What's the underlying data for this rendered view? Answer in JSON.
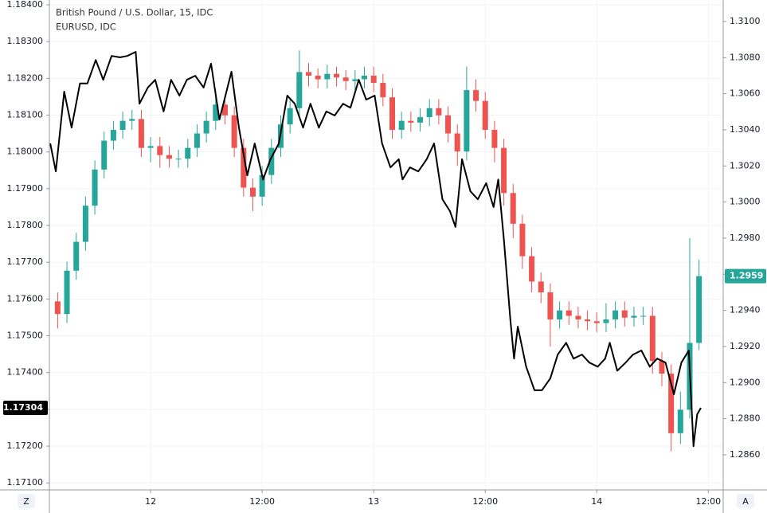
{
  "chart_data": {
    "type": "candlestick",
    "title": "British Pound / U.S. Dollar, 15, IDC",
    "grid": true,
    "xlim": [
      13.11,
      85.6
    ],
    "xticks": [
      {
        "value": 24,
        "label": "12"
      },
      {
        "value": 36,
        "label": "12:00"
      },
      {
        "value": 48,
        "label": "13"
      },
      {
        "value": 60,
        "label": "12:00"
      },
      {
        "value": 72,
        "label": "14"
      },
      {
        "value": 84,
        "label": "12:00"
      }
    ],
    "ylim": [
      1.17081,
      1.18413
    ],
    "yticks": [
      {
        "value": 1.171,
        "label": "1.17100"
      },
      {
        "value": 1.172,
        "label": "1.17200"
      },
      {
        "value": 1.173,
        "label": "1.17300"
      },
      {
        "value": 1.174,
        "label": "1.17400"
      },
      {
        "value": 1.175,
        "label": "1.17500"
      },
      {
        "value": 1.176,
        "label": "1.17600"
      },
      {
        "value": 1.177,
        "label": "1.17700"
      },
      {
        "value": 1.178,
        "label": "1.17800"
      },
      {
        "value": 1.179,
        "label": "1.17900"
      },
      {
        "value": 1.18,
        "label": "1.18000"
      },
      {
        "value": 1.181,
        "label": "1.18100"
      },
      {
        "value": 1.182,
        "label": "1.18200"
      },
      {
        "value": 1.183,
        "label": "1.18300"
      },
      {
        "value": 1.184,
        "label": "1.18400"
      }
    ],
    "y2lim": [
      1.28406,
      1.31119
    ],
    "y2ticks": [
      {
        "value": 1.286,
        "label": "1.2860"
      },
      {
        "value": 1.288,
        "label": "1.2880"
      },
      {
        "value": 1.29,
        "label": "1.2900"
      },
      {
        "value": 1.292,
        "label": "1.2920"
      },
      {
        "value": 1.294,
        "label": "1.2940"
      },
      {
        "value": 1.296,
        "label": "1.2960"
      },
      {
        "value": 1.298,
        "label": "1.2980"
      },
      {
        "value": 1.3,
        "label": "1.3000"
      },
      {
        "value": 1.302,
        "label": "1.3020"
      },
      {
        "value": 1.304,
        "label": "1.3040"
      },
      {
        "value": 1.306,
        "label": "1.3060"
      },
      {
        "value": 1.308,
        "label": "1.3080"
      },
      {
        "value": 1.31,
        "label": "1.3100"
      }
    ],
    "corner_buttons": [
      "Z",
      "A"
    ],
    "series": [
      {
        "type": "candlestick",
        "axis": "y2",
        "up_color": "#26a69a",
        "down_color": "#ef5350",
        "last_label": {
          "value": 1.2959,
          "label": "1.2959"
        },
        "x": [
          14,
          15,
          16,
          17,
          18,
          19,
          20,
          21,
          22,
          23,
          24,
          25,
          26,
          27,
          28,
          29,
          30,
          31,
          32,
          33,
          34,
          35,
          36,
          37,
          38,
          39,
          40,
          41,
          42,
          43,
          44,
          45,
          46,
          47,
          48,
          49,
          50,
          51,
          52,
          53,
          54,
          55,
          56,
          57,
          58,
          59,
          60,
          61,
          62,
          63,
          64,
          65,
          66,
          67,
          68,
          69,
          70,
          71,
          72,
          73,
          74,
          75,
          76,
          77,
          78,
          79,
          80,
          81,
          82,
          83
        ],
        "open": [
          1.2945,
          1.2938,
          1.2962,
          1.2978,
          1.2998,
          1.3018,
          1.3034,
          1.304,
          1.3045,
          1.3046,
          1.303,
          1.3031,
          1.3026,
          1.3024,
          1.3024,
          1.303,
          1.3038,
          1.3045,
          1.3054,
          1.3048,
          1.303,
          1.3008,
          1.3003,
          1.3015,
          1.303,
          1.3043,
          1.3052,
          1.3072,
          1.307,
          1.3068,
          1.3071,
          1.3069,
          1.3067,
          1.3068,
          1.307,
          1.3066,
          1.3058,
          1.304,
          1.3045,
          1.3044,
          1.3047,
          1.3052,
          1.3048,
          1.3038,
          1.3028,
          1.3062,
          1.3056,
          1.304,
          1.303,
          1.3005,
          1.2988,
          1.297,
          1.2956,
          1.295,
          1.2935,
          1.294,
          1.2937,
          1.2935,
          1.2934,
          1.2933,
          1.2935,
          1.294,
          1.2936,
          1.2937,
          1.2937,
          1.2912,
          1.2905,
          1.2872,
          1.2885,
          1.2922
        ],
        "high": [
          1.295,
          1.2967,
          1.2983,
          1.3003,
          1.3023,
          1.3039,
          1.3045,
          1.305,
          1.3051,
          1.3051,
          1.3036,
          1.3036,
          1.3031,
          1.3029,
          1.3035,
          1.3043,
          1.305,
          1.3062,
          1.3059,
          1.3053,
          1.3035,
          1.3013,
          1.302,
          1.3035,
          1.3048,
          1.3057,
          1.3084,
          1.3077,
          1.3074,
          1.3076,
          1.3075,
          1.3073,
          1.3073,
          1.3075,
          1.3075,
          1.3071,
          1.3063,
          1.305,
          1.305,
          1.3052,
          1.3057,
          1.3057,
          1.3053,
          1.3043,
          1.3075,
          1.3068,
          1.3061,
          1.3045,
          1.3035,
          1.301,
          1.2993,
          1.2975,
          1.2961,
          1.2955,
          1.2945,
          1.2945,
          1.2942,
          1.294,
          1.2939,
          1.2944,
          1.2945,
          1.2945,
          1.2942,
          1.2942,
          1.2942,
          1.2917,
          1.291,
          1.2895,
          1.298,
          1.2968
        ],
        "low": [
          1.293,
          1.2933,
          1.2957,
          1.2973,
          1.2993,
          1.3013,
          1.3029,
          1.3035,
          1.304,
          1.3025,
          1.3022,
          1.3019,
          1.3019,
          1.3019,
          1.3019,
          1.3025,
          1.3033,
          1.304,
          1.3043,
          1.3025,
          1.3003,
          1.2995,
          1.2998,
          1.301,
          1.3025,
          1.3038,
          1.3047,
          1.3064,
          1.3063,
          1.3063,
          1.3064,
          1.3062,
          1.3062,
          1.3063,
          1.3061,
          1.3053,
          1.3035,
          1.3035,
          1.3039,
          1.3039,
          1.3042,
          1.3043,
          1.3033,
          1.302,
          1.3023,
          1.305,
          1.3035,
          1.3022,
          1.2998,
          1.298,
          1.2963,
          1.295,
          1.2944,
          1.292,
          1.293,
          1.2932,
          1.293,
          1.2929,
          1.2928,
          1.2928,
          1.293,
          1.2931,
          1.2931,
          1.2932,
          1.2905,
          1.2898,
          1.2862,
          1.2866,
          1.288,
          1.2918
        ],
        "close": [
          1.2938,
          1.2962,
          1.2978,
          1.2998,
          1.3018,
          1.3034,
          1.304,
          1.3045,
          1.3046,
          1.303,
          1.3031,
          1.3026,
          1.3024,
          1.3024,
          1.303,
          1.3038,
          1.3045,
          1.3054,
          1.3048,
          1.303,
          1.3008,
          1.3003,
          1.3015,
          1.303,
          1.3043,
          1.3052,
          1.3072,
          1.307,
          1.3068,
          1.3071,
          1.3069,
          1.3067,
          1.3068,
          1.307,
          1.3066,
          1.3058,
          1.304,
          1.3045,
          1.3044,
          1.3047,
          1.3052,
          1.3048,
          1.3038,
          1.3028,
          1.3062,
          1.3056,
          1.304,
          1.303,
          1.3005,
          1.2988,
          1.297,
          1.2956,
          1.295,
          1.2935,
          1.294,
          1.2937,
          1.2935,
          1.2934,
          1.2933,
          1.2935,
          1.294,
          1.2936,
          1.2937,
          1.2937,
          1.2912,
          1.2905,
          1.2872,
          1.2885,
          1.2922,
          1.2959
        ]
      },
      {
        "type": "line",
        "name": "EURUSD, IDC",
        "color": "#000000",
        "last_label": {
          "value": 1.17304,
          "label": "1.17304"
        },
        "x": [
          13.2,
          13.8,
          14.7,
          15.5,
          16.4,
          17.2,
          18.1,
          18.9,
          19.8,
          20.7,
          21.5,
          22.4,
          22.8,
          23.7,
          24.5,
          25.4,
          26.2,
          27.1,
          27.9,
          28.8,
          29.7,
          30.5,
          31.4,
          32.7,
          33.5,
          34.4,
          35.2,
          36.1,
          36.9,
          37.8,
          38.7,
          39.5,
          40.4,
          41.2,
          42.1,
          42.9,
          43.8,
          44.7,
          45.5,
          46.4,
          47.2,
          48.1,
          48.9,
          49.8,
          50.7,
          51.1,
          51.9,
          52.8,
          53.7,
          54.5,
          55.4,
          56.2,
          56.8,
          57.5,
          58.4,
          59.2,
          60.1,
          60.9,
          61.4,
          62.0,
          62.7,
          63.1,
          63.5,
          64.4,
          65.3,
          66.1,
          67.0,
          67.8,
          68.7,
          69.5,
          70.4,
          71.2,
          72.1,
          72.9,
          73.4,
          74.2,
          75.1,
          75.9,
          76.8,
          77.7,
          78.5,
          79.4,
          80.3,
          81.1,
          81.9,
          82.4,
          82.8,
          83.2
        ],
        "values": [
          1.18023,
          1.17947,
          1.18164,
          1.18066,
          1.18186,
          1.18186,
          1.1825,
          1.18196,
          1.18261,
          1.18257,
          1.18261,
          1.18272,
          1.18131,
          1.18175,
          1.18196,
          1.1811,
          1.18196,
          1.18153,
          1.18196,
          1.18207,
          1.18175,
          1.1824,
          1.18088,
          1.18218,
          1.18066,
          1.17936,
          1.18023,
          1.17925,
          1.1798,
          1.18023,
          1.18153,
          1.18131,
          1.18066,
          1.18131,
          1.18066,
          1.1811,
          1.18099,
          1.18131,
          1.1812,
          1.18196,
          1.18142,
          1.18153,
          1.18023,
          1.17958,
          1.1798,
          1.17925,
          1.17958,
          1.17947,
          1.1798,
          1.18023,
          1.17871,
          1.17839,
          1.17796,
          1.1798,
          1.17893,
          1.17871,
          1.17915,
          1.1785,
          1.17925,
          1.17763,
          1.17546,
          1.17438,
          1.17525,
          1.17416,
          1.17352,
          1.17352,
          1.17384,
          1.17449,
          1.17481,
          1.17438,
          1.17449,
          1.17427,
          1.17416,
          1.17438,
          1.17481,
          1.17405,
          1.17427,
          1.17449,
          1.1746,
          1.17416,
          1.17438,
          1.17427,
          1.17341,
          1.17427,
          1.1746,
          1.172,
          1.17286,
          1.17304
        ]
      }
    ]
  }
}
